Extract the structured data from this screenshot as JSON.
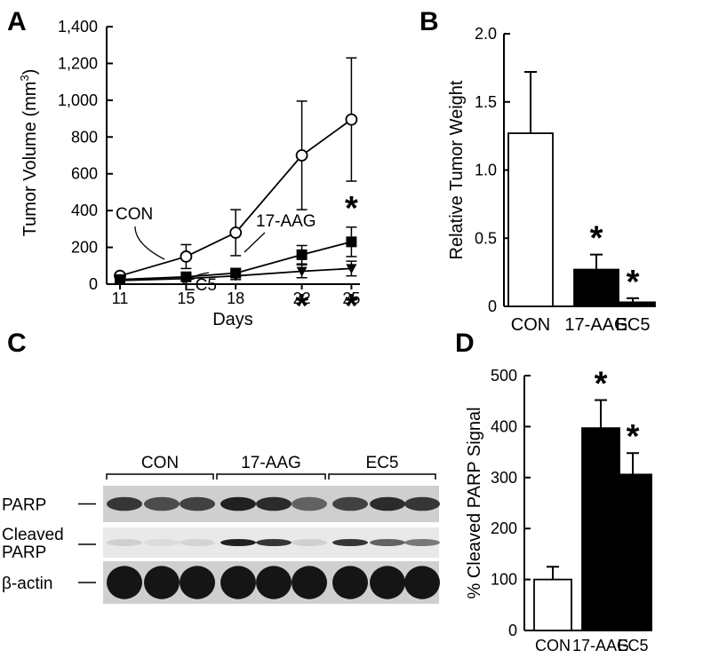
{
  "chart_data": [
    {
      "panel": "A",
      "type": "line",
      "xlabel": "Days",
      "ylabel": "Tumor Volume (mm",
      "ylabel_sup": "3",
      "ylabel_close": ")",
      "x": [
        11,
        15,
        18,
        22,
        25
      ],
      "x_ticks": [
        "11",
        "15",
        "18",
        "22",
        "25"
      ],
      "ylim": [
        0,
        1400
      ],
      "y_ticks": [
        {
          "v": 0,
          "label": "0"
        },
        {
          "v": 200,
          "label": "200"
        },
        {
          "v": 400,
          "label": "400"
        },
        {
          "v": 600,
          "label": "600"
        },
        {
          "v": 800,
          "label": "800"
        },
        {
          "v": 1000,
          "label": "1,000"
        },
        {
          "v": 1200,
          "label": "1,200"
        },
        {
          "v": 1400,
          "label": "1,400"
        }
      ],
      "series": [
        {
          "name": "CON",
          "marker": "open-circle",
          "values": [
            45,
            150,
            280,
            700,
            895
          ],
          "err": [
            10,
            65,
            125,
            295,
            335
          ]
        },
        {
          "name": "17-AAG",
          "marker": "filled-square",
          "values": [
            25,
            40,
            60,
            160,
            230
          ],
          "err": [
            10,
            20,
            25,
            50,
            80
          ]
        },
        {
          "name": "EC5",
          "marker": "filled-triangle-down",
          "values": [
            20,
            30,
            45,
            70,
            85
          ],
          "err": [
            8,
            15,
            20,
            35,
            40
          ]
        }
      ],
      "annotations": [
        {
          "text": "*",
          "x": 25,
          "y": 420
        },
        {
          "text": "*",
          "x": 22,
          "y": -110
        },
        {
          "text": "*",
          "x": 25,
          "y": -110
        }
      ],
      "grid": false
    },
    {
      "panel": "B",
      "type": "bar",
      "ylabel": "Relative Tumor Weight",
      "categories": [
        "CON",
        "17-AAG",
        "EC5"
      ],
      "values": [
        1.27,
        0.27,
        0.03
      ],
      "err": [
        0.45,
        0.11,
        0.03
      ],
      "bar_colors": [
        "#ffffff",
        "#000000",
        "#000000"
      ],
      "ylim": [
        0,
        2.0
      ],
      "y_ticks": [
        {
          "v": 0,
          "label": "0"
        },
        {
          "v": 0.5,
          "label": "0.5"
        },
        {
          "v": 1.0,
          "label": "1.0"
        },
        {
          "v": 1.5,
          "label": "1.5"
        },
        {
          "v": 2.0,
          "label": "2.0"
        }
      ],
      "significance": [
        "",
        "*",
        "*"
      ],
      "grid": false
    },
    {
      "panel": "D",
      "type": "bar",
      "ylabel": "% Cleaved PARP Signal",
      "categories": [
        "CON",
        "17-AAG",
        "EC5"
      ],
      "values": [
        100,
        397,
        306
      ],
      "err": [
        25,
        55,
        42
      ],
      "bar_colors": [
        "#ffffff",
        "#000000",
        "#000000"
      ],
      "ylim": [
        0,
        500
      ],
      "y_ticks": [
        {
          "v": 0,
          "label": "0"
        },
        {
          "v": 100,
          "label": "100"
        },
        {
          "v": 200,
          "label": "200"
        },
        {
          "v": 300,
          "label": "300"
        },
        {
          "v": 400,
          "label": "400"
        },
        {
          "v": 500,
          "label": "500"
        }
      ],
      "significance": [
        "",
        "*",
        "*"
      ],
      "grid": false
    }
  ],
  "blot": {
    "panel": "C",
    "groups": [
      "CON",
      "17-AAG",
      "EC5"
    ],
    "rows": [
      {
        "label": "PARP",
        "label2": "",
        "intensity": [
          0.8,
          0.7,
          0.75,
          0.9,
          0.85,
          0.6,
          0.75,
          0.85,
          0.8
        ]
      },
      {
        "label": "Cleaved",
        "label2": "PARP",
        "intensity": [
          0.1,
          0.05,
          0.08,
          0.9,
          0.8,
          0.1,
          0.8,
          0.6,
          0.5
        ]
      },
      {
        "label": "β-actin",
        "label2": "",
        "intensity": [
          0.95,
          0.95,
          0.95,
          0.95,
          0.95,
          0.95,
          0.95,
          0.95,
          0.95
        ]
      }
    ]
  }
}
